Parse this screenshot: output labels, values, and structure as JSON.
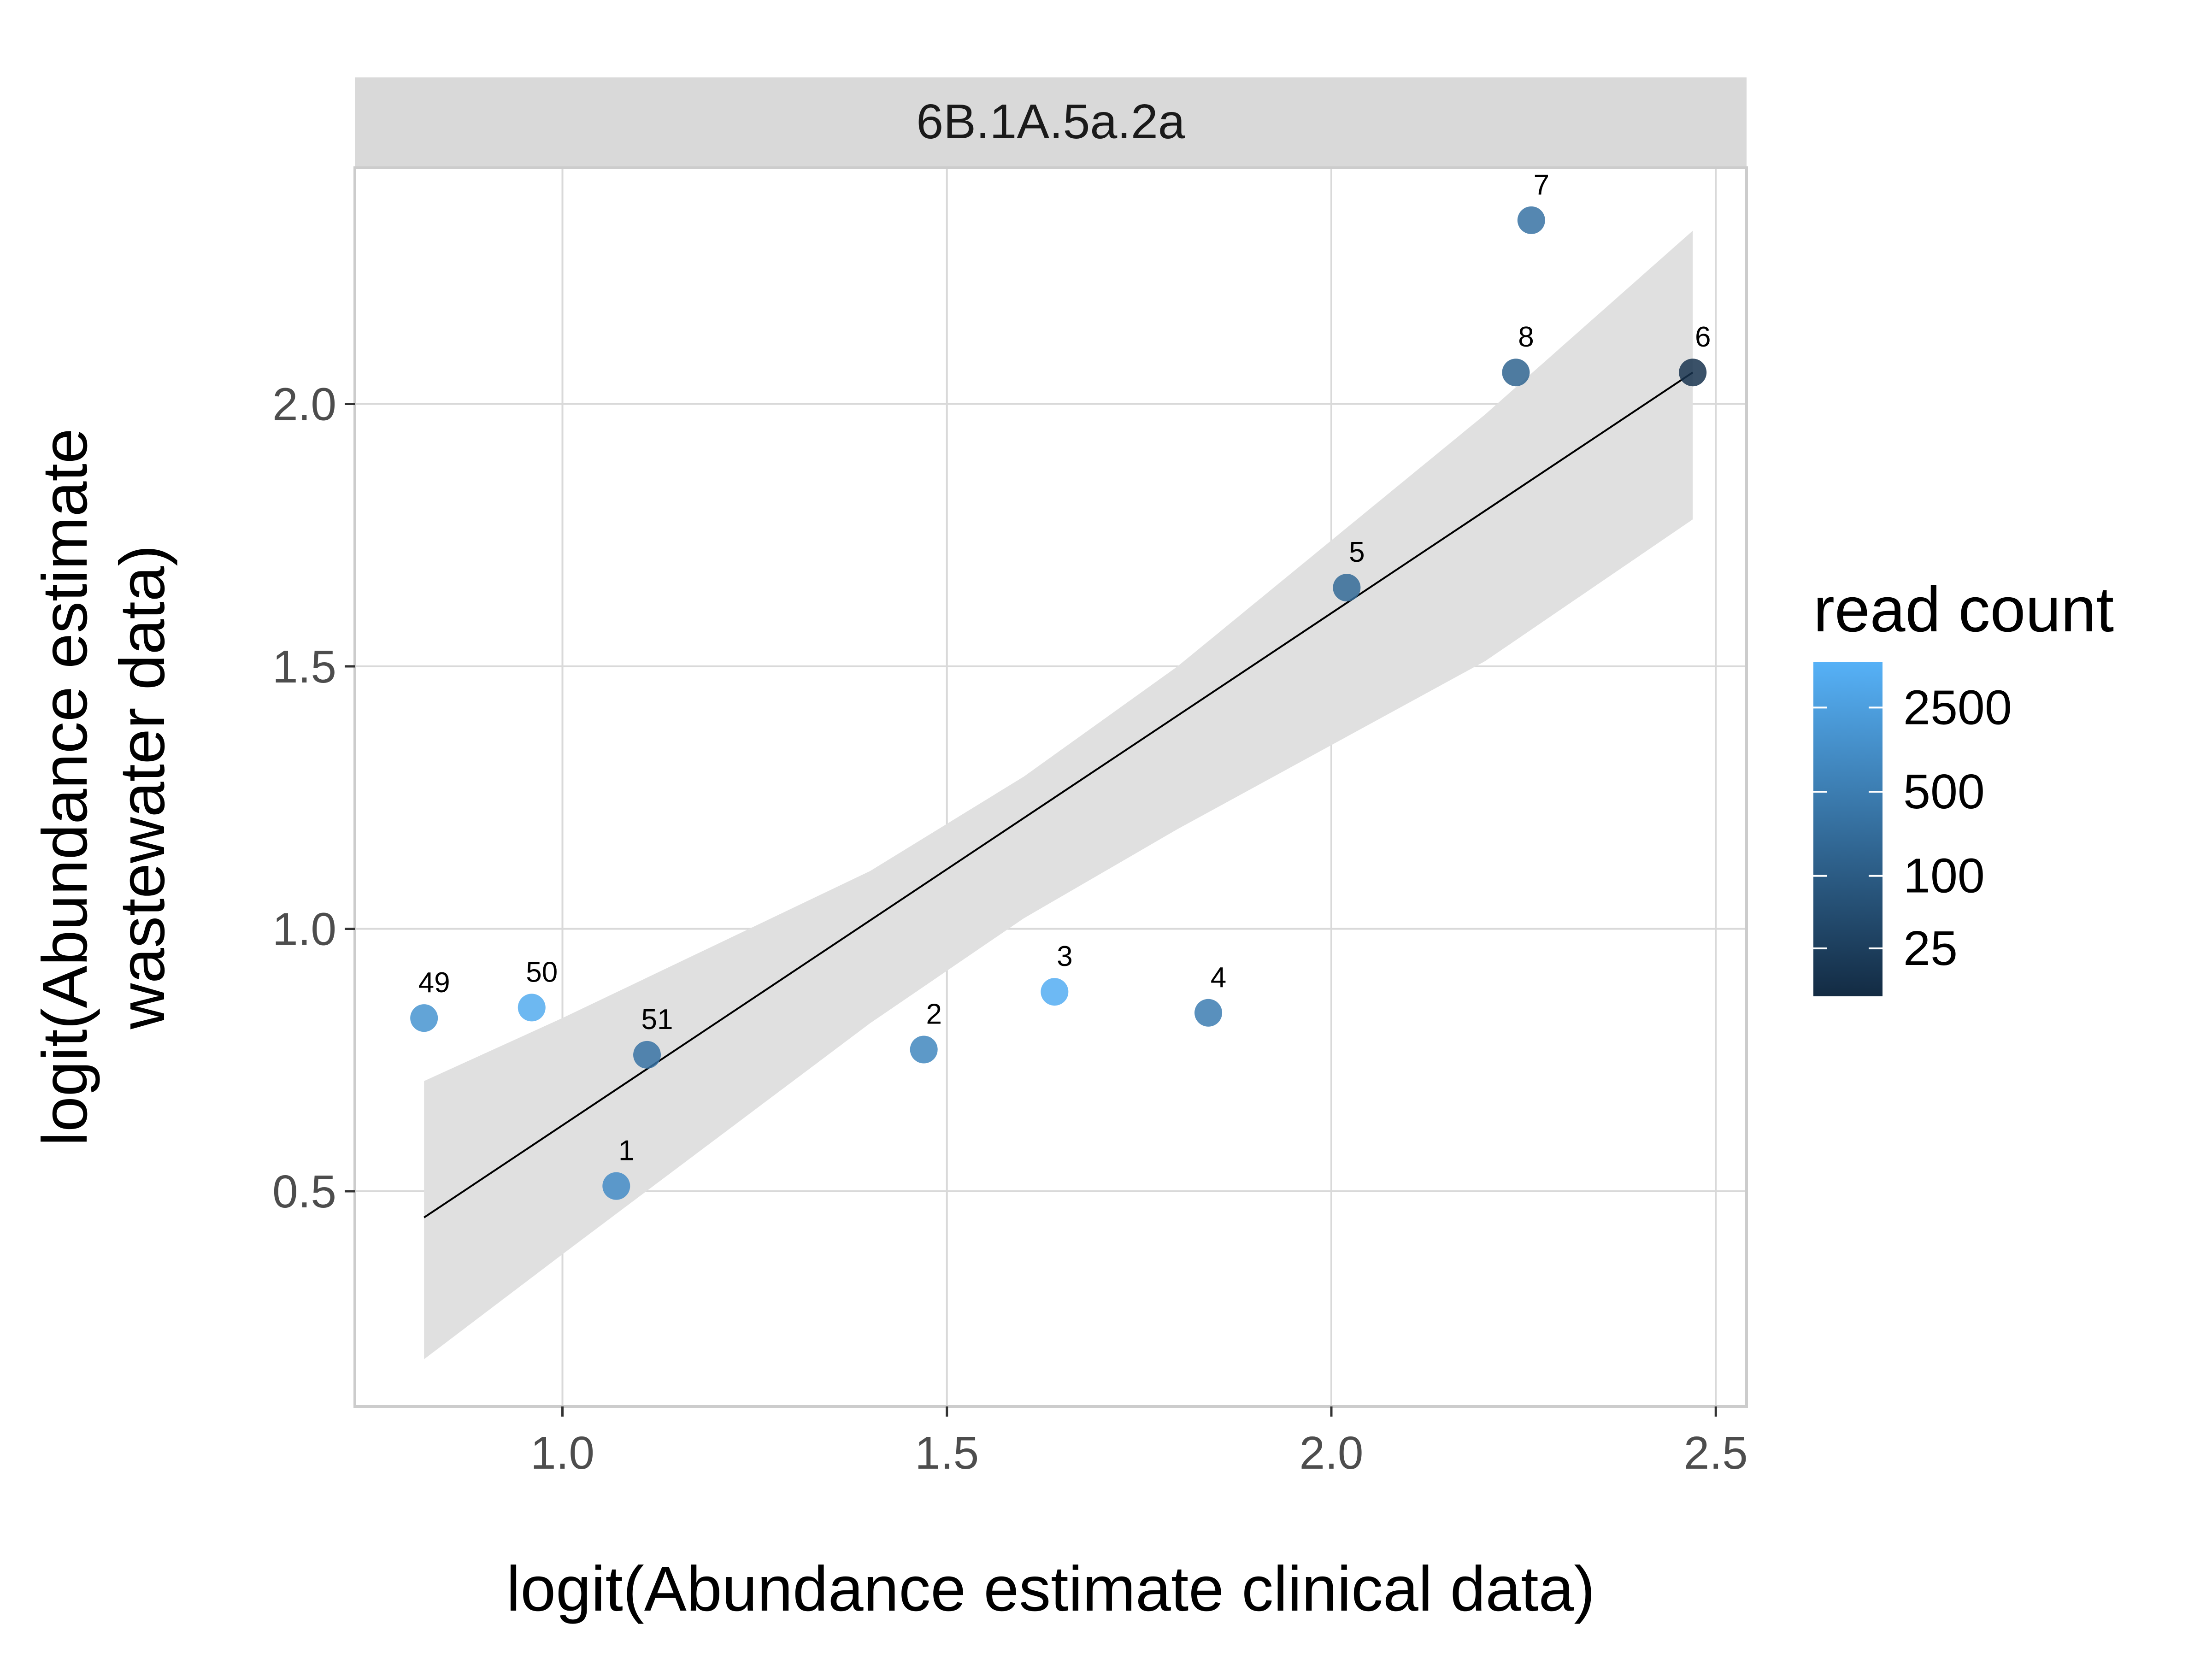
{
  "chart_data": {
    "type": "scatter",
    "panel_title": "6B.1A.5a.2a",
    "xlabel": "logit(Abundance estimate clinical data)",
    "ylabel_lines": [
      "logit(Abundance estimate",
      "wastewater data)"
    ],
    "xlim": [
      0.73,
      2.54
    ],
    "ylim": [
      0.09,
      2.45
    ],
    "xticks": [
      1.0,
      1.5,
      2.0,
      2.5
    ],
    "xtick_labels": [
      "1.0",
      "1.5",
      "2.0",
      "2.5"
    ],
    "yticks": [
      0.5,
      1.0,
      1.5,
      2.0
    ],
    "ytick_labels": [
      "0.5",
      "1.0",
      "1.5",
      "2.0"
    ],
    "grid": true,
    "points": [
      {
        "label": "49",
        "x": 0.82,
        "y": 0.83,
        "read_count": 1500
      },
      {
        "label": "50",
        "x": 0.96,
        "y": 0.85,
        "read_count": 4500
      },
      {
        "label": "51",
        "x": 1.11,
        "y": 0.76,
        "read_count": 300
      },
      {
        "label": "1",
        "x": 1.07,
        "y": 0.51,
        "read_count": 1000
      },
      {
        "label": "2",
        "x": 1.47,
        "y": 0.77,
        "read_count": 800
      },
      {
        "label": "3",
        "x": 1.64,
        "y": 0.88,
        "read_count": 5000
      },
      {
        "label": "4",
        "x": 1.84,
        "y": 0.84,
        "read_count": 500
      },
      {
        "label": "5",
        "x": 2.02,
        "y": 1.65,
        "read_count": 200
      },
      {
        "label": "8",
        "x": 2.24,
        "y": 2.06,
        "read_count": 150
      },
      {
        "label": "7",
        "x": 2.26,
        "y": 2.35,
        "read_count": 300
      },
      {
        "label": "6",
        "x": 2.47,
        "y": 2.06,
        "read_count": 15
      }
    ],
    "fit_line": {
      "x": [
        0.82,
        2.47
      ],
      "y": [
        0.45,
        2.06
      ]
    },
    "confidence_band": {
      "x": [
        0.82,
        1.0,
        1.2,
        1.4,
        1.6,
        1.8,
        2.0,
        2.2,
        2.47
      ],
      "upper": [
        0.71,
        0.83,
        0.97,
        1.11,
        1.29,
        1.5,
        1.74,
        1.98,
        2.33
      ],
      "lower": [
        0.18,
        0.38,
        0.6,
        0.82,
        1.02,
        1.19,
        1.35,
        1.51,
        1.78
      ]
    },
    "legend": {
      "title": "read count",
      "placement": "right",
      "tick_values": [
        25,
        100,
        500,
        2500
      ],
      "tick_labels": [
        "25",
        "100",
        "500",
        "2500"
      ],
      "range": [
        10,
        6000
      ],
      "color_low": "#132b43",
      "color_high": "#56b1f7"
    },
    "colors": {
      "panel_background": "#ffffff",
      "panel_border": "#cccccc",
      "grid": "#d9d9d9",
      "strip_background": "#d9d9d9",
      "band_fill": "#e0e0e0",
      "fit_line": "#000000"
    }
  }
}
